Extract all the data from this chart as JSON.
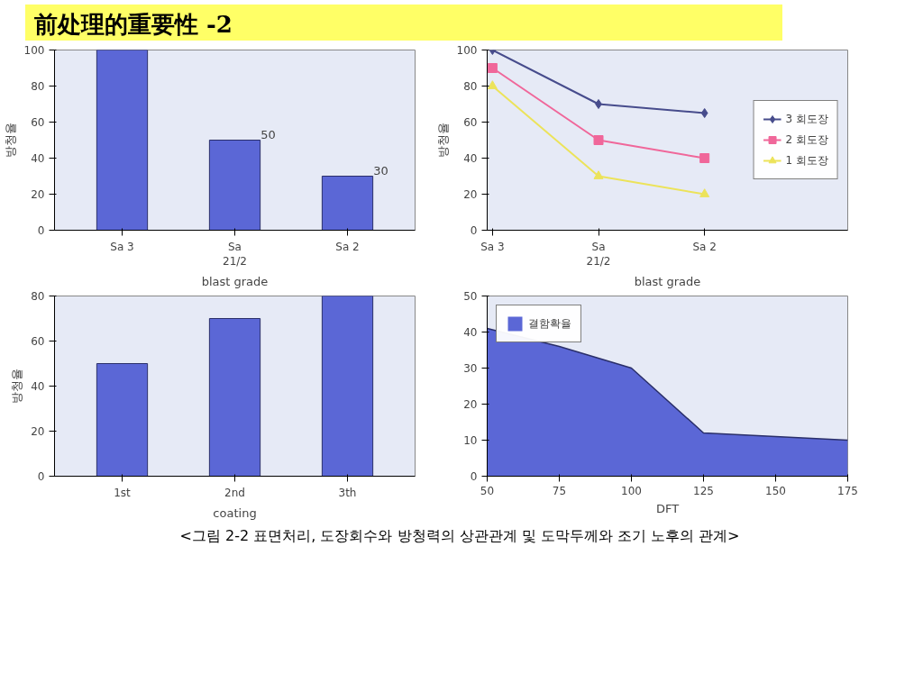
{
  "chart_data": [
    {
      "type": "bar",
      "title": "前处理的重要性 -2",
      "ylabel": "방청율",
      "xlabel": "blast grade",
      "categories": [
        "Sa 3",
        "Sa\n21/2",
        "Sa 2"
      ],
      "values": [
        100,
        50,
        30
      ],
      "value_labels": [
        null,
        "50",
        "30"
      ],
      "color": "#5b67d6",
      "ylim": [
        0,
        100
      ],
      "yticks": [
        0,
        20,
        40,
        60,
        80,
        100
      ],
      "grid": false,
      "legend": false
    },
    {
      "type": "line",
      "ylabel": "방청율",
      "xlabel": "blast grade",
      "categories": [
        "Sa 3",
        "Sa\n21/2",
        "Sa 2"
      ],
      "ylim": [
        0,
        100
      ],
      "yticks": [
        0,
        20,
        40,
        60,
        80,
        100
      ],
      "grid": false,
      "legend": "right",
      "series": [
        {
          "name": "3 회도장",
          "color": "#474c8c",
          "marker": "diamond",
          "values": [
            100,
            70,
            65
          ]
        },
        {
          "name": "2 회도장",
          "color": "#f0679a",
          "marker": "square",
          "values": [
            90,
            50,
            40
          ]
        },
        {
          "name": "1 회도장",
          "color": "#ece35a",
          "marker": "triangle",
          "values": [
            80,
            30,
            20
          ]
        }
      ]
    },
    {
      "type": "bar",
      "ylabel": "방청율",
      "xlabel": "coating",
      "categories": [
        "1st",
        "2nd",
        "3th"
      ],
      "values": [
        50,
        70,
        80
      ],
      "color": "#5b67d6",
      "ylim": [
        0,
        80
      ],
      "yticks": [
        0,
        20,
        40,
        60,
        80
      ],
      "grid": false,
      "legend": false
    },
    {
      "type": "area",
      "xlabel": "DFT",
      "x": [
        50,
        75,
        100,
        125,
        150,
        175
      ],
      "xlim": [
        50,
        175
      ],
      "xticks": [
        50,
        75,
        100,
        125,
        150,
        175
      ],
      "ylim": [
        0,
        50
      ],
      "yticks": [
        0,
        10,
        20,
        30,
        40,
        50
      ],
      "grid": false,
      "legend": "top left",
      "series": [
        {
          "name": "결함확율",
          "color": "#5b67d6",
          "values": [
            41,
            36,
            30,
            12,
            11,
            10
          ]
        }
      ],
      "annotations": [
        "<그림 2-2 표면처리, 도장회수와 방청력의 상관관계 및 도막두께와 조기 노후의 관계>"
      ]
    }
  ]
}
